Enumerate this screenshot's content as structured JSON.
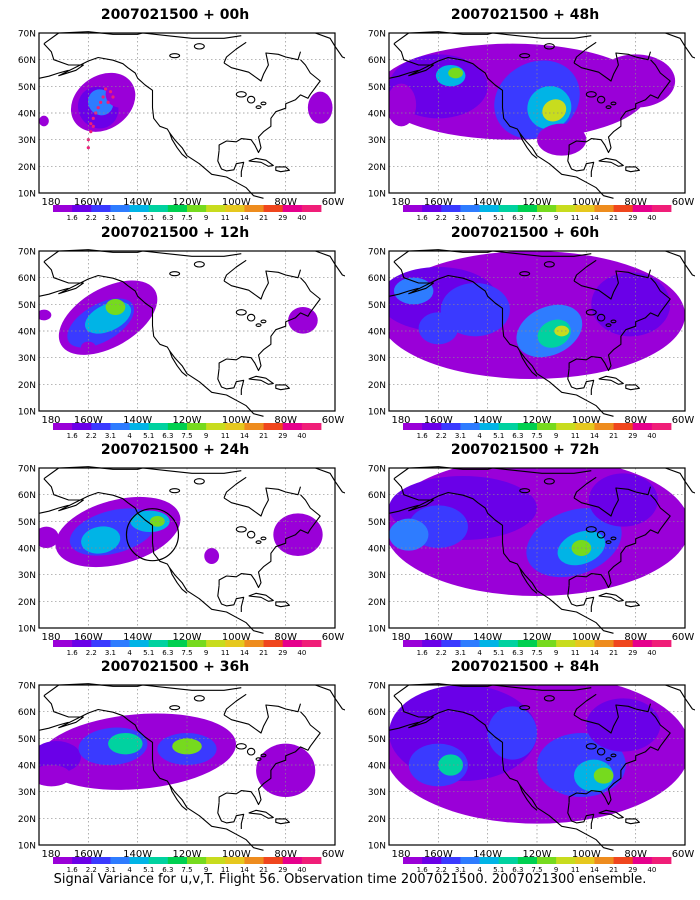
{
  "panels": [
    {
      "id": "p00",
      "title": "2007021500 + 00h"
    },
    {
      "id": "p48",
      "title": "2007021500 + 48h"
    },
    {
      "id": "p12",
      "title": "2007021500 + 12h"
    },
    {
      "id": "p60",
      "title": "2007021500 + 60h"
    },
    {
      "id": "p24",
      "title": "2007021500 + 24h"
    },
    {
      "id": "p72",
      "title": "2007021500 + 72h"
    },
    {
      "id": "p36",
      "title": "2007021500 + 36h"
    },
    {
      "id": "p84",
      "title": "2007021500 + 84h"
    }
  ],
  "lat_labels": [
    "10N",
    "20N",
    "30N",
    "40N",
    "50N",
    "60N",
    "70N"
  ],
  "lon_labels": [
    "180",
    "160W",
    "140W",
    "120W",
    "100W",
    "80W",
    "60W"
  ],
  "colorbar": {
    "levels": [
      "1.6",
      "2.2",
      "3.1",
      "4",
      "5.1",
      "6.3",
      "7.5",
      "9",
      "11",
      "14",
      "21",
      "29",
      "40"
    ],
    "colors": [
      "#9a00d8",
      "#6a00e8",
      "#3a3aff",
      "#2e7cff",
      "#00b4e6",
      "#00d2a0",
      "#00d050",
      "#76da1e",
      "#c8dc1e",
      "#e6c81e",
      "#ee8c1e",
      "#f0461e",
      "#e6008c",
      "#f01e78"
    ]
  },
  "footer": "Signal Variance for u,v,T. Flight 56. Observation time 2007021500. 2007021300 ensemble."
}
